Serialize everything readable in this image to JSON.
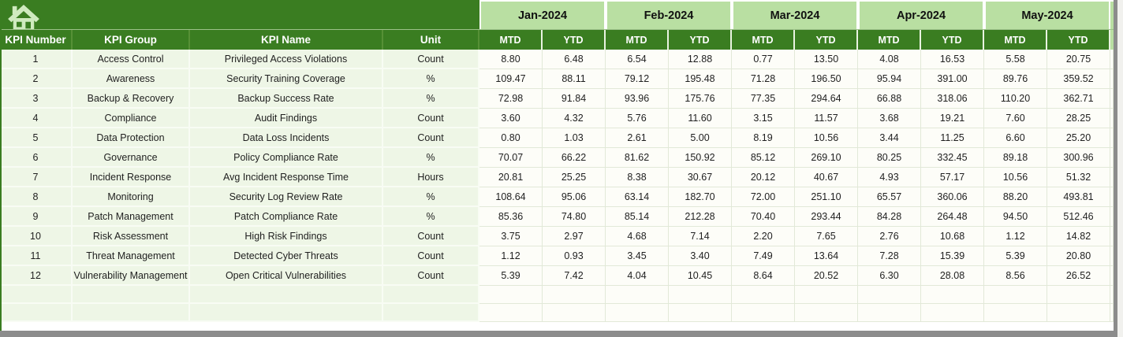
{
  "colors": {
    "dark_green": "#3a7d21",
    "month_header_green": "#b9dfa2",
    "row_green": "#eef6e6",
    "cell_white": "#fdfdf8",
    "frame_gray": "#8c8c8c"
  },
  "table": {
    "column_headers": [
      "KPI Number",
      "KPI Group",
      "KPI Name",
      "Unit"
    ],
    "months": [
      "Jan-2024",
      "Feb-2024",
      "Mar-2024",
      "Apr-2024",
      "May-2024"
    ],
    "sub_headers": [
      "MTD",
      "YTD"
    ],
    "rows": [
      {
        "kpi_number": "1",
        "kpi_group": "Access Control",
        "kpi_name": "Privileged Access Violations",
        "unit": "Count",
        "values": [
          "8.80",
          "6.48",
          "6.54",
          "12.88",
          "0.77",
          "13.50",
          "4.08",
          "16.53",
          "5.58",
          "20.75"
        ]
      },
      {
        "kpi_number": "2",
        "kpi_group": "Awareness",
        "kpi_name": "Security Training Coverage",
        "unit": "%",
        "values": [
          "109.47",
          "88.11",
          "79.12",
          "195.48",
          "71.28",
          "196.50",
          "95.94",
          "391.00",
          "89.76",
          "359.52"
        ]
      },
      {
        "kpi_number": "3",
        "kpi_group": "Backup & Recovery",
        "kpi_name": "Backup Success Rate",
        "unit": "%",
        "values": [
          "72.98",
          "91.84",
          "93.96",
          "175.76",
          "77.35",
          "294.64",
          "66.88",
          "318.06",
          "110.20",
          "362.71"
        ]
      },
      {
        "kpi_number": "4",
        "kpi_group": "Compliance",
        "kpi_name": "Audit Findings",
        "unit": "Count",
        "values": [
          "3.60",
          "4.32",
          "5.76",
          "11.60",
          "3.15",
          "11.57",
          "3.68",
          "19.21",
          "7.60",
          "28.25"
        ]
      },
      {
        "kpi_number": "5",
        "kpi_group": "Data Protection",
        "kpi_name": "Data Loss Incidents",
        "unit": "Count",
        "values": [
          "0.80",
          "1.03",
          "2.61",
          "5.00",
          "8.19",
          "10.56",
          "3.44",
          "11.25",
          "6.60",
          "25.20"
        ]
      },
      {
        "kpi_number": "6",
        "kpi_group": "Governance",
        "kpi_name": "Policy Compliance Rate",
        "unit": "%",
        "values": [
          "70.07",
          "66.22",
          "81.62",
          "150.92",
          "85.12",
          "269.10",
          "80.25",
          "332.45",
          "89.18",
          "300.96"
        ]
      },
      {
        "kpi_number": "7",
        "kpi_group": "Incident Response",
        "kpi_name": "Avg Incident Response Time",
        "unit": "Hours",
        "values": [
          "20.81",
          "25.25",
          "8.38",
          "30.67",
          "20.12",
          "40.67",
          "4.93",
          "57.17",
          "10.56",
          "51.32"
        ]
      },
      {
        "kpi_number": "8",
        "kpi_group": "Monitoring",
        "kpi_name": "Security Log Review Rate",
        "unit": "%",
        "values": [
          "108.64",
          "95.06",
          "63.14",
          "182.70",
          "72.00",
          "251.10",
          "65.57",
          "360.06",
          "88.20",
          "493.81"
        ]
      },
      {
        "kpi_number": "9",
        "kpi_group": "Patch Management",
        "kpi_name": "Patch Compliance Rate",
        "unit": "%",
        "values": [
          "85.36",
          "74.80",
          "85.14",
          "212.28",
          "70.40",
          "293.44",
          "84.28",
          "264.48",
          "94.50",
          "512.46"
        ]
      },
      {
        "kpi_number": "10",
        "kpi_group": "Risk Assessment",
        "kpi_name": "High Risk Findings",
        "unit": "Count",
        "values": [
          "3.75",
          "2.97",
          "4.68",
          "7.14",
          "2.20",
          "7.65",
          "2.76",
          "10.68",
          "1.12",
          "14.82"
        ]
      },
      {
        "kpi_number": "11",
        "kpi_group": "Threat Management",
        "kpi_name": "Detected Cyber Threats",
        "unit": "Count",
        "values": [
          "1.12",
          "0.93",
          "3.45",
          "3.40",
          "7.49",
          "13.64",
          "7.28",
          "15.39",
          "5.39",
          "20.80"
        ]
      },
      {
        "kpi_number": "12",
        "kpi_group": "Vulnerability Management",
        "kpi_name": "Open Critical Vulnerabilities",
        "unit": "Count",
        "values": [
          "5.39",
          "7.42",
          "4.04",
          "10.45",
          "8.64",
          "20.52",
          "6.30",
          "28.08",
          "8.56",
          "26.52"
        ]
      }
    ],
    "empty_row_count": 2
  }
}
